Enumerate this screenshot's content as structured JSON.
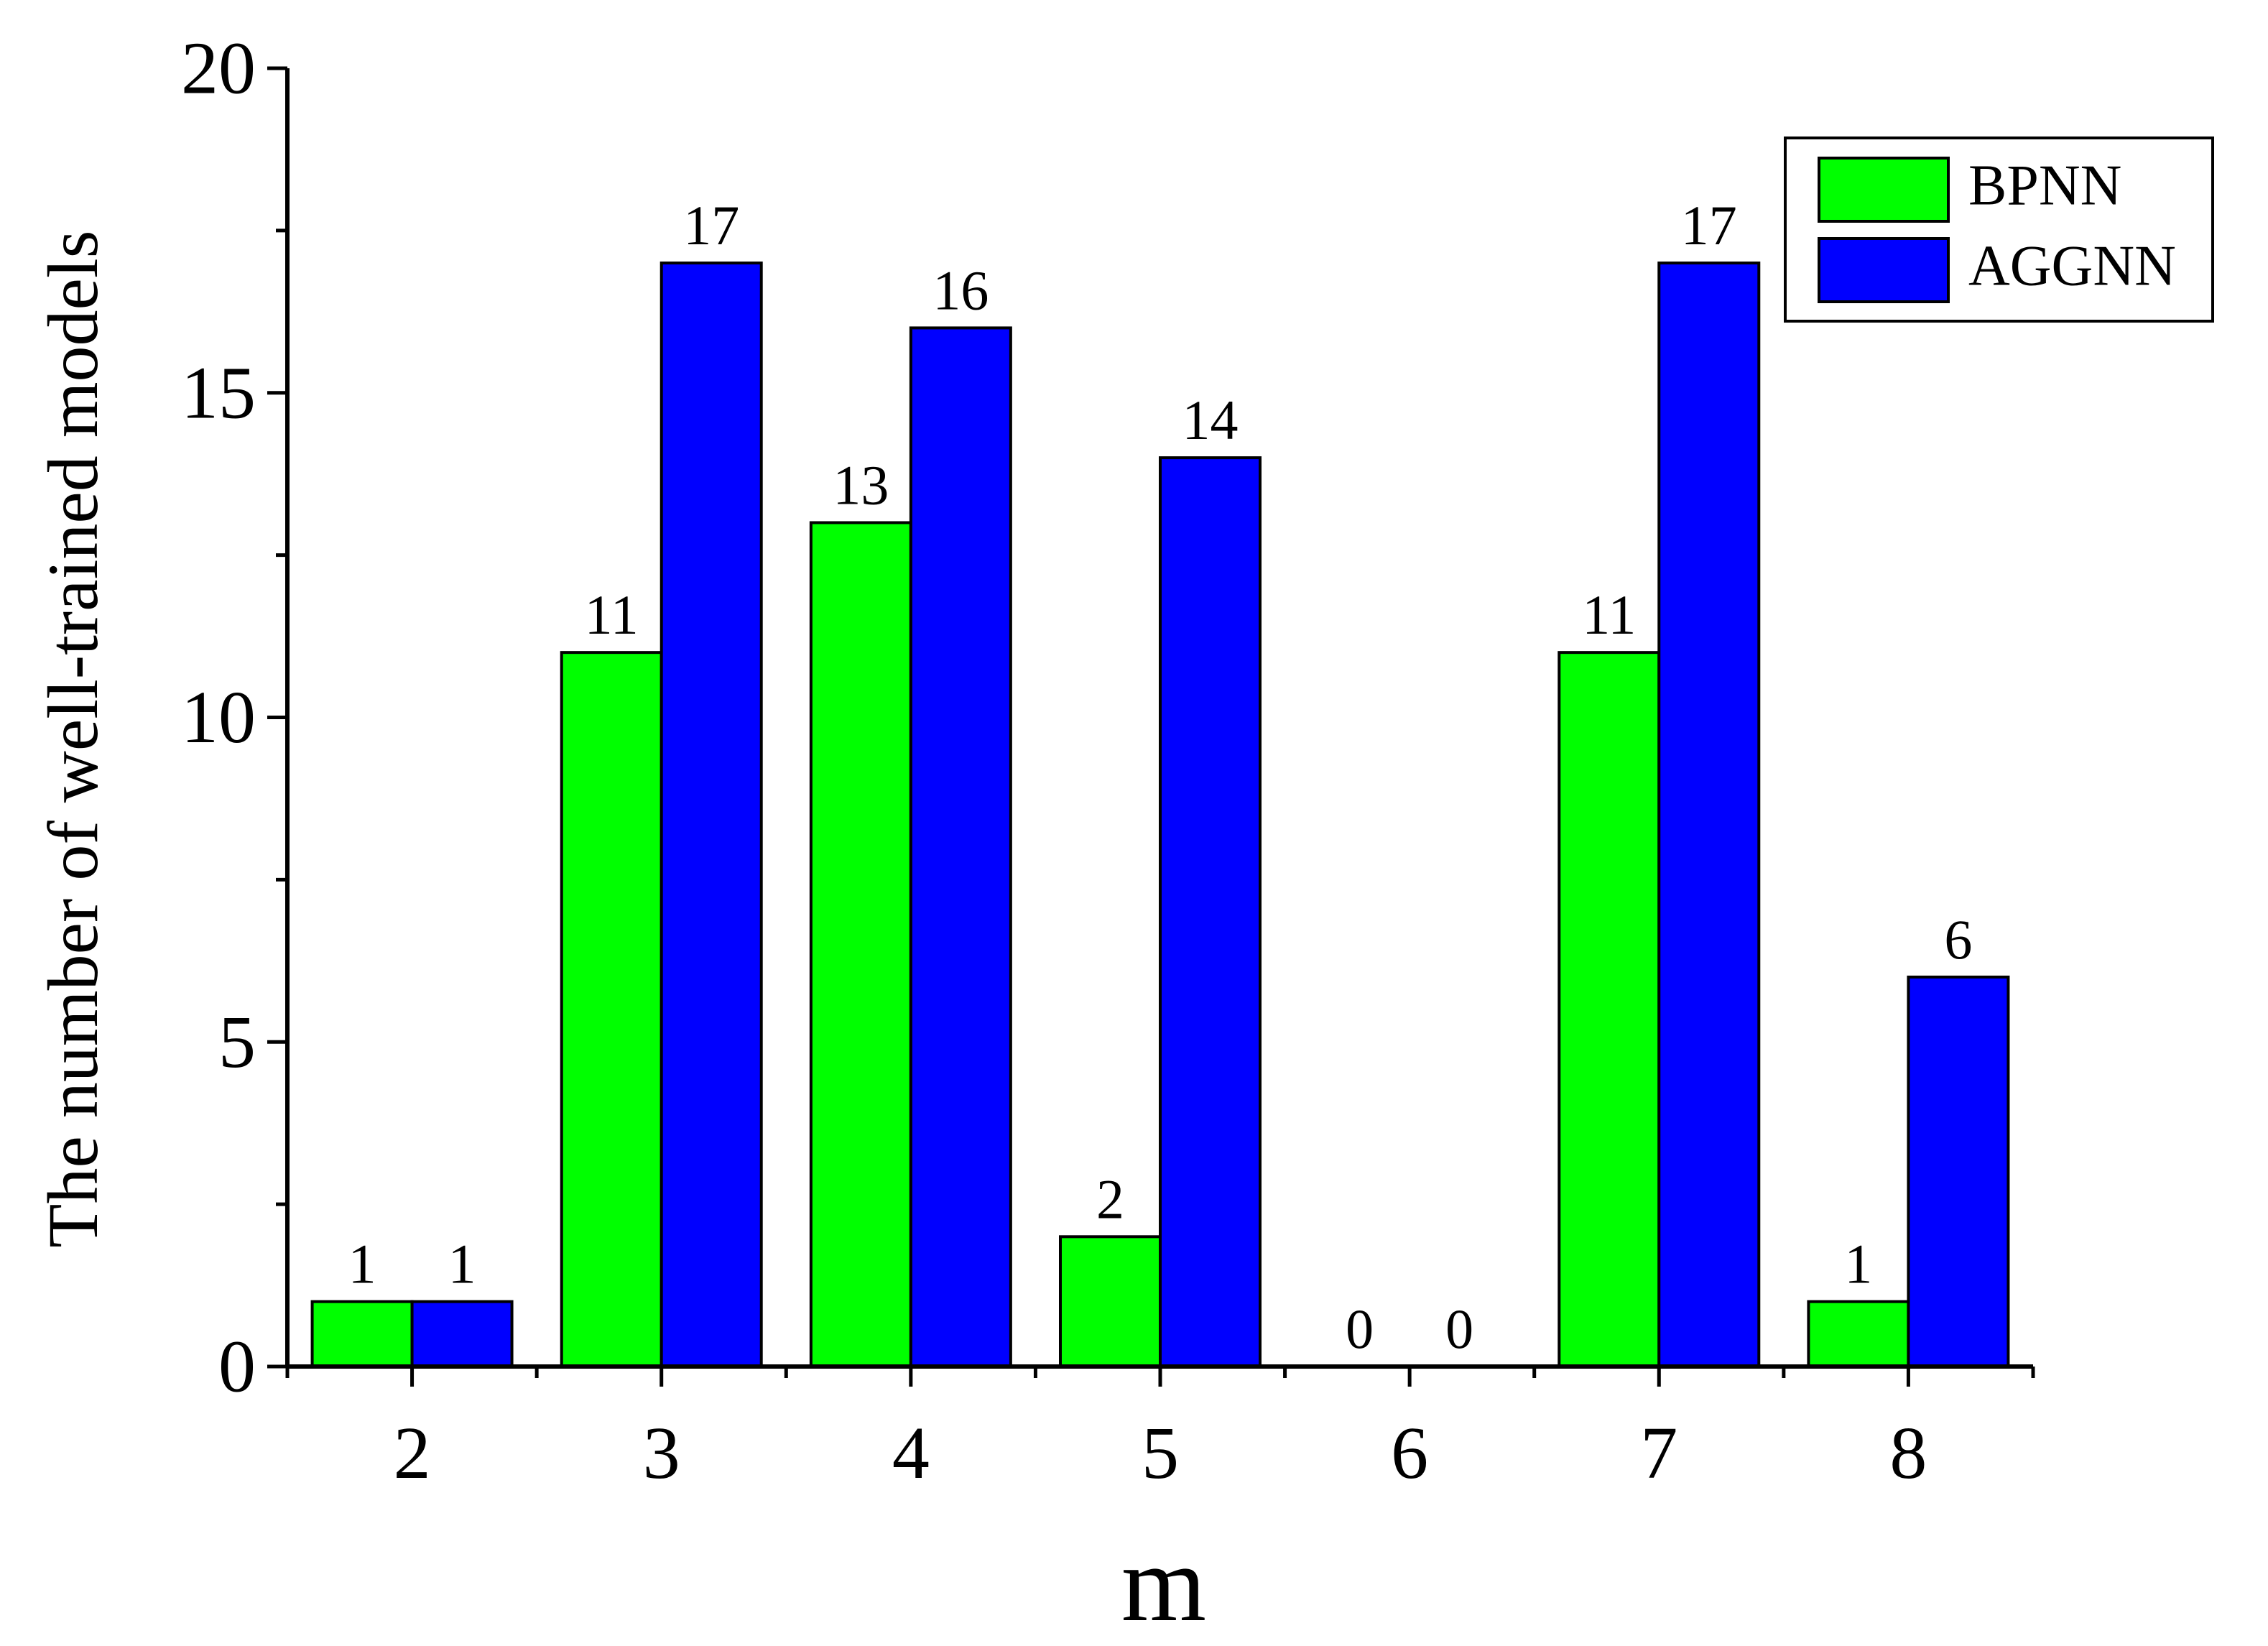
{
  "chart_data": {
    "type": "bar",
    "xlabel": "m",
    "ylabel": "The number of well-trained models",
    "categories": [
      "2",
      "3",
      "4",
      "5",
      "6",
      "7",
      "8"
    ],
    "series": [
      {
        "name": "BPNN",
        "color": "#00ff00",
        "values": [
          1,
          11,
          13,
          2,
          0,
          11,
          1
        ]
      },
      {
        "name": "AGGNN",
        "color": "#0000ff",
        "values": [
          1,
          17,
          16,
          14,
          0,
          17,
          6
        ]
      }
    ],
    "ylim": [
      0,
      20
    ],
    "yticks": [
      "0",
      "5",
      "10",
      "15",
      "20"
    ],
    "grid": false,
    "legend_position": "top-right",
    "data_labels": true
  }
}
